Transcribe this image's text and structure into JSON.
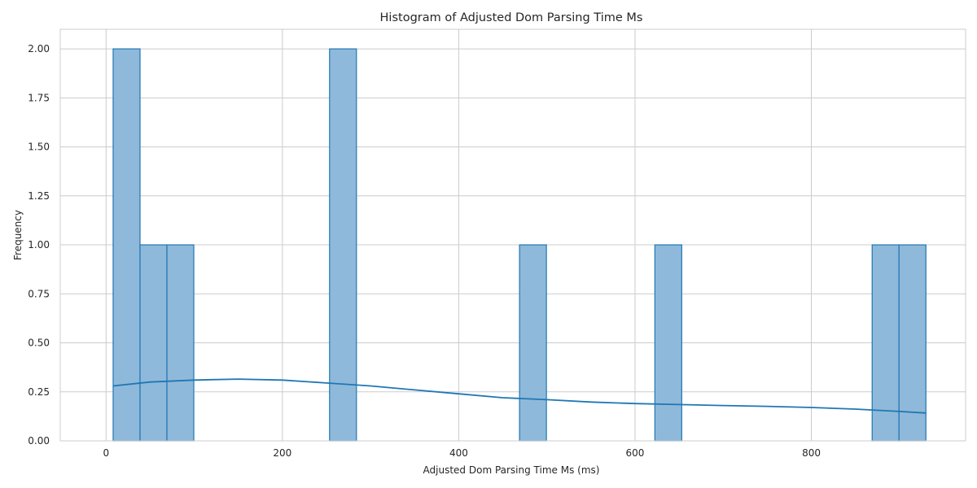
{
  "chart_data": {
    "type": "bar",
    "title": "Histogram of Adjusted Dom Parsing Time Ms",
    "xlabel": "Adjusted Dom Parsing Time Ms (ms)",
    "ylabel": "Frequency",
    "xlim": [
      -52,
      975
    ],
    "ylim": [
      0,
      2.1
    ],
    "xticks": [
      0,
      200,
      400,
      600,
      800
    ],
    "yticks": [
      0.0,
      0.25,
      0.5,
      0.75,
      1.0,
      1.25,
      1.5,
      1.75,
      2.0
    ],
    "ytick_labels": [
      "0.00",
      "0.25",
      "0.50",
      "0.75",
      "1.00",
      "1.25",
      "1.50",
      "1.75",
      "2.00"
    ],
    "grid": true,
    "bins": [
      {
        "x0": 8,
        "x1": 38.5,
        "count": 2
      },
      {
        "x0": 38.5,
        "x1": 69,
        "count": 1
      },
      {
        "x0": 69,
        "x1": 99.5,
        "count": 1
      },
      {
        "x0": 253.5,
        "x1": 284,
        "count": 2
      },
      {
        "x0": 469,
        "x1": 499.5,
        "count": 1
      },
      {
        "x0": 622.5,
        "x1": 653,
        "count": 1
      },
      {
        "x0": 869,
        "x1": 899.5,
        "count": 1
      },
      {
        "x0": 899.5,
        "x1": 930,
        "count": 1
      }
    ],
    "kde": {
      "x": [
        8,
        50,
        100,
        150,
        200,
        250,
        300,
        350,
        400,
        450,
        500,
        550,
        600,
        650,
        700,
        750,
        800,
        850,
        900,
        930
      ],
      "y": [
        0.28,
        0.3,
        0.31,
        0.315,
        0.31,
        0.295,
        0.28,
        0.26,
        0.24,
        0.22,
        0.21,
        0.198,
        0.19,
        0.185,
        0.18,
        0.176,
        0.17,
        0.162,
        0.15,
        0.142
      ]
    },
    "colors": {
      "bar_fill": "#8fb9da",
      "bar_edge": "#1f77b4",
      "kde_line": "#1f77b4"
    }
  }
}
